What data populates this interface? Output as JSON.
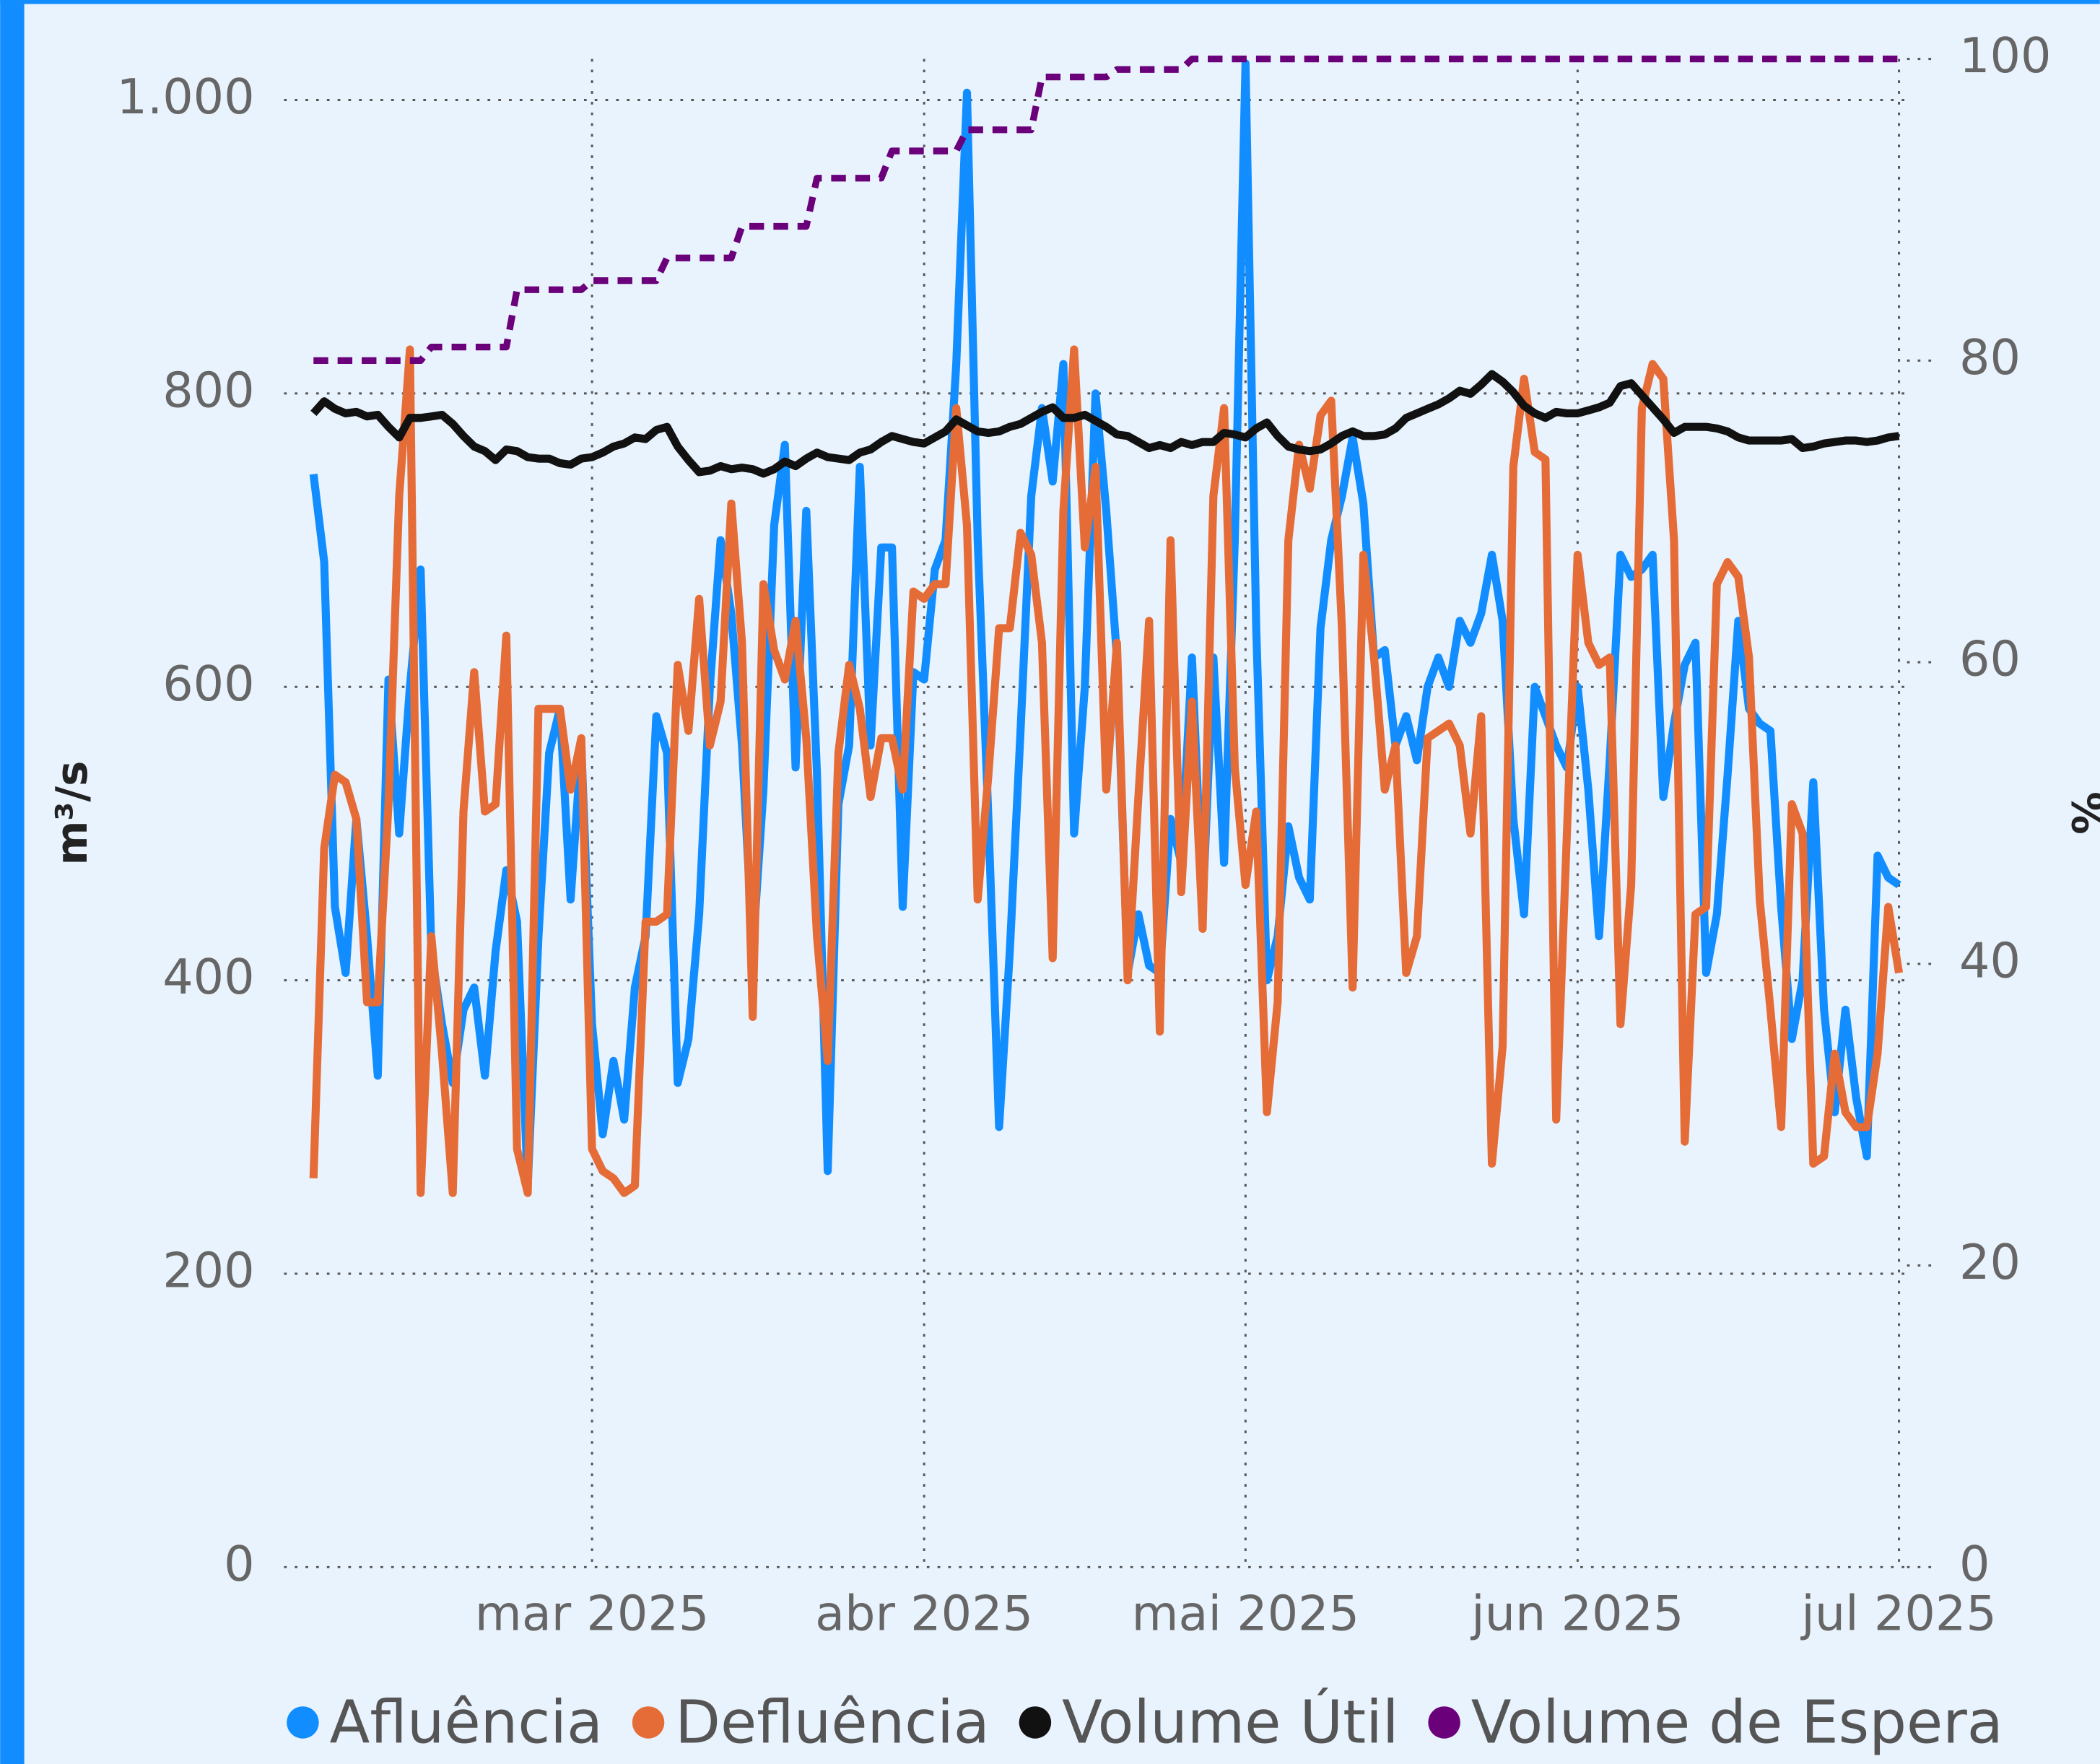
{
  "chart_data": {
    "type": "line",
    "y_label": "m³/s",
    "y2_label": "%",
    "categories": [
      null,
      null,
      null,
      null,
      null,
      null,
      null,
      null,
      null,
      null,
      null,
      null,
      null,
      null,
      null,
      null,
      null,
      null,
      null,
      null,
      null,
      null,
      null,
      null,
      null,
      null,
      "mar 2025",
      null,
      null,
      null,
      null,
      null,
      null,
      null,
      null,
      null,
      null,
      null,
      null,
      null,
      null,
      null,
      null,
      null,
      null,
      null,
      null,
      null,
      null,
      null,
      null,
      null,
      null,
      null,
      null,
      null,
      null,
      "abr 2025",
      null,
      null,
      null,
      null,
      null,
      null,
      null,
      null,
      null,
      null,
      null,
      null,
      null,
      null,
      null,
      null,
      null,
      null,
      null,
      null,
      null,
      null,
      null,
      null,
      null,
      null,
      null,
      null,
      null,
      "mai 2025",
      null,
      null,
      null,
      null,
      null,
      null,
      null,
      null,
      null,
      null,
      null,
      null,
      null,
      null,
      null,
      null,
      null,
      null,
      null,
      null,
      null,
      null,
      null,
      null,
      null,
      null,
      null,
      null,
      null,
      null,
      "jun 2025",
      null,
      null,
      null,
      null,
      null,
      null,
      null,
      null,
      null,
      null,
      null,
      null,
      null,
      null,
      null,
      null,
      null,
      null,
      null,
      null,
      null,
      null,
      null,
      null,
      null,
      null,
      null,
      null,
      null,
      "jul 2025"
    ],
    "series": [
      {
        "name": "Afluência",
        "color": "#118dff",
        "axis": "y",
        "values": [
          745,
          685,
          450,
          405,
          510,
          430,
          335,
          605,
          500,
          600,
          680,
          420,
          370,
          330,
          380,
          395,
          335,
          420,
          475,
          440,
          260,
          430,
          555,
          585,
          455,
          560,
          370,
          295,
          345,
          305,
          395,
          430,
          580,
          555,
          330,
          360,
          445,
          600,
          700,
          650,
          560,
          420,
          530,
          710,
          765,
          545,
          720,
          540,
          270,
          520,
          560,
          750,
          560,
          695,
          695,
          450,
          610,
          605,
          680,
          700,
          820,
          1005,
          700,
          510,
          300,
          420,
          570,
          730,
          790,
          740,
          820,
          500,
          600,
          800,
          720,
          620,
          405,
          445,
          410,
          405,
          510,
          480,
          620,
          450,
          620,
          480,
          700,
          1025,
          640,
          400,
          430,
          505,
          470,
          455,
          640,
          700,
          730,
          770,
          725,
          620,
          625,
          560,
          580,
          550,
          600,
          620,
          600,
          645,
          630,
          650,
          690,
          645,
          510,
          445,
          600,
          580,
          560,
          545,
          600,
          530,
          430,
          550,
          690,
          675,
          680,
          690,
          525,
          575,
          615,
          630,
          405,
          445,
          540,
          645,
          585,
          575,
          570,
          450,
          360,
          400,
          535,
          380,
          310,
          380,
          320,
          280,
          485,
          470,
          465
        ]
      },
      {
        "name": "Defluência",
        "color": "#e66c37",
        "axis": "y",
        "values": [
          265,
          490,
          540,
          535,
          510,
          385,
          385,
          520,
          730,
          830,
          255,
          430,
          350,
          255,
          515,
          610,
          515,
          520,
          635,
          285,
          255,
          585,
          585,
          585,
          530,
          565,
          285,
          270,
          265,
          255,
          260,
          440,
          440,
          445,
          615,
          570,
          660,
          560,
          590,
          725,
          630,
          375,
          670,
          625,
          605,
          645,
          565,
          430,
          345,
          555,
          615,
          585,
          525,
          565,
          565,
          530,
          665,
          660,
          670,
          670,
          790,
          710,
          455,
          540,
          640,
          640,
          705,
          690,
          630,
          415,
          720,
          830,
          695,
          750,
          530,
          630,
          400,
          525,
          645,
          365,
          700,
          460,
          590,
          435,
          730,
          790,
          545,
          465,
          515,
          310,
          385,
          700,
          765,
          735,
          785,
          795,
          640,
          395,
          690,
          620,
          530,
          560,
          405,
          430,
          565,
          570,
          575,
          560,
          500,
          580,
          275,
          355,
          750,
          810,
          760,
          755,
          305,
          500,
          690,
          630,
          615,
          620,
          370,
          465,
          790,
          820,
          810,
          700,
          290,
          445,
          450,
          670,
          685,
          675,
          620,
          455,
          380,
          300,
          520,
          500,
          275,
          280,
          350,
          310,
          300,
          300,
          350,
          450,
          405
        ]
      },
      {
        "name": "Volume Útil",
        "color": "#111111",
        "axis": "y2",
        "values": [
          76.5,
          77.3,
          76.8,
          76.5,
          76.6,
          76.3,
          76.4,
          75.6,
          74.9,
          76.2,
          76.2,
          76.3,
          76.4,
          75.8,
          75.0,
          74.3,
          74.0,
          73.4,
          74.1,
          74.0,
          73.6,
          73.5,
          73.5,
          73.2,
          73.1,
          73.5,
          73.6,
          73.9,
          74.3,
          74.5,
          74.9,
          74.8,
          75.4,
          75.6,
          74.3,
          73.4,
          72.6,
          72.7,
          73.0,
          72.8,
          72.9,
          72.8,
          72.5,
          72.8,
          73.3,
          73.0,
          73.5,
          73.9,
          73.6,
          73.5,
          73.4,
          73.9,
          74.1,
          74.6,
          75.0,
          74.8,
          74.6,
          74.5,
          74.9,
          75.3,
          76.1,
          75.7,
          75.3,
          75.2,
          75.3,
          75.6,
          75.8,
          76.2,
          76.6,
          76.9,
          76.2,
          76.2,
          76.4,
          76.0,
          75.6,
          75.1,
          75.0,
          74.6,
          74.2,
          74.4,
          74.2,
          74.6,
          74.4,
          74.6,
          74.6,
          75.2,
          75.1,
          74.9,
          75.5,
          75.9,
          75.0,
          74.3,
          74.1,
          74.0,
          74.1,
          74.5,
          75.0,
          75.3,
          75.0,
          75.0,
          75.1,
          75.5,
          76.2,
          76.5,
          76.8,
          77.1,
          77.5,
          78.0,
          77.8,
          78.4,
          79.1,
          78.6,
          77.9,
          77.0,
          76.5,
          76.2,
          76.6,
          76.5,
          76.5,
          76.7,
          76.9,
          77.2,
          78.3,
          78.5,
          77.7,
          76.9,
          76.1,
          75.2,
          75.6,
          75.6,
          75.6,
          75.5,
          75.3,
          74.9,
          74.7,
          74.7,
          74.7,
          74.7,
          74.8,
          74.2,
          74.3,
          74.5,
          74.6,
          74.7,
          74.7,
          74.6,
          74.7,
          74.9,
          75.0
        ]
      },
      {
        "name": "Volume de Espera",
        "color": "#6b007b",
        "axis": "y2",
        "dashed": true,
        "values": [
          80,
          80,
          80,
          80,
          80,
          80,
          80,
          80,
          80,
          80,
          80,
          80.9,
          80.9,
          80.9,
          80.9,
          80.9,
          80.9,
          80.9,
          80.9,
          84.7,
          84.7,
          84.7,
          84.7,
          84.7,
          84.7,
          84.7,
          85.3,
          85.3,
          85.3,
          85.3,
          85.3,
          85.3,
          85.3,
          86.8,
          86.8,
          86.8,
          86.8,
          86.8,
          86.8,
          86.8,
          88.9,
          88.9,
          88.9,
          88.9,
          88.9,
          88.9,
          88.9,
          92.1,
          92.1,
          92.1,
          92.1,
          92.1,
          92.1,
          92.1,
          93.9,
          93.9,
          93.9,
          93.9,
          93.9,
          93.9,
          93.9,
          95.3,
          95.3,
          95.3,
          95.3,
          95.3,
          95.3,
          95.3,
          98.8,
          98.8,
          98.8,
          98.8,
          98.8,
          98.8,
          98.8,
          99.3,
          99.3,
          99.3,
          99.3,
          99.3,
          99.3,
          99.3,
          100,
          100,
          100,
          100,
          100,
          100,
          100,
          100,
          100,
          100,
          100,
          100,
          100,
          100,
          100,
          100,
          100,
          100,
          100,
          100,
          100,
          100,
          100,
          100,
          100,
          100,
          100,
          100,
          100,
          100,
          100,
          100,
          100,
          100,
          100,
          100,
          100,
          100,
          100,
          100,
          100,
          100,
          100,
          100,
          100,
          100,
          100,
          100,
          100,
          100,
          100,
          100,
          100,
          100,
          100,
          100,
          100,
          100,
          100,
          100,
          100,
          100,
          100,
          100,
          100,
          100,
          100
        ]
      }
    ],
    "ylim": [
      0,
      1028
    ],
    "yticks": [
      0,
      200,
      400,
      600,
      800,
      {
        "value": 1000,
        "label": "1.000"
      }
    ],
    "y2lim": [
      0,
      100
    ],
    "y2ticks": [
      0,
      20,
      40,
      60,
      80,
      100
    ],
    "grid": true,
    "grid_style": "dotted",
    "legend": "bottom"
  }
}
